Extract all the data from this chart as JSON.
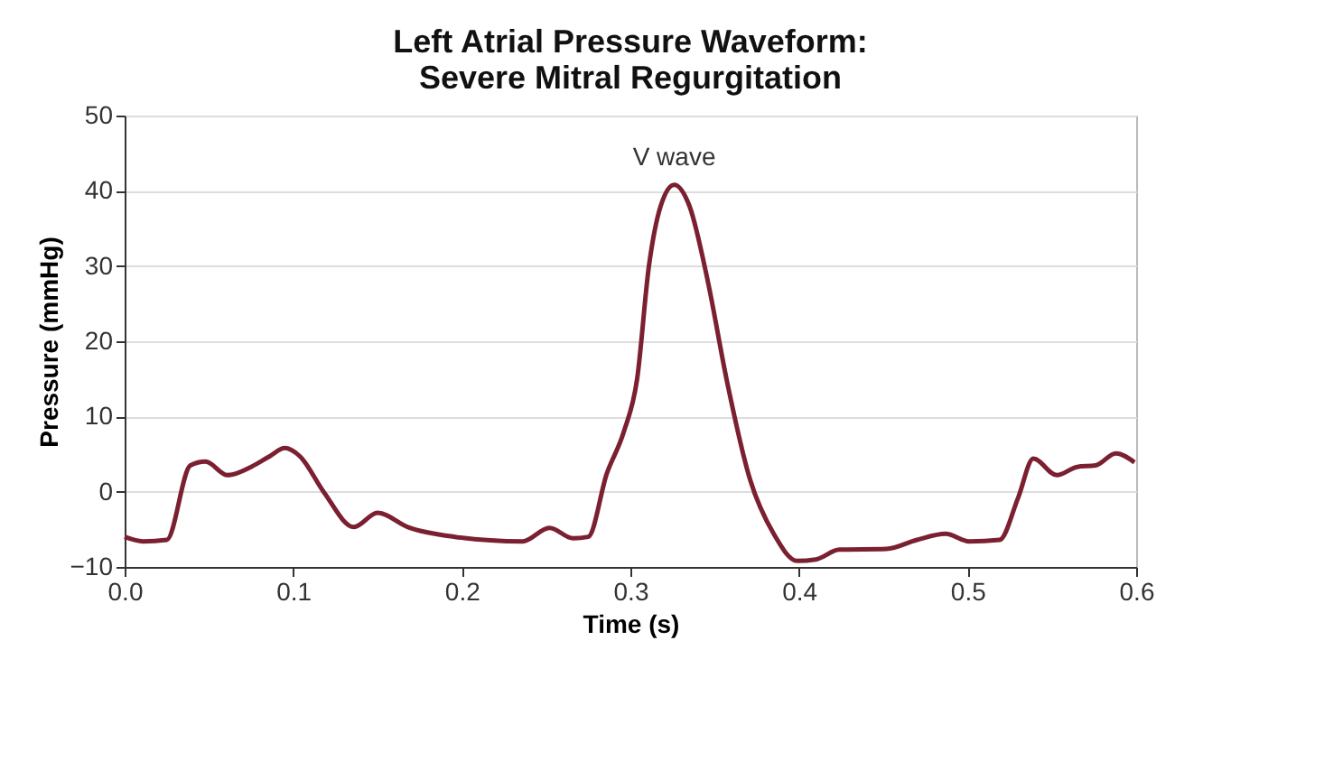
{
  "chart_data": {
    "type": "line",
    "title": [
      "Left Atrial Pressure Waveform:",
      "Severe Mitral Regurgitation"
    ],
    "xlabel": "Time (s)",
    "ylabel": "Pressure (mmHg)",
    "x": [
      0,
      0.011,
      0.025,
      0.039,
      0.048,
      0.061,
      0.075,
      0.086,
      0.095,
      0.104,
      0.118,
      0.136,
      0.15,
      0.168,
      0.196,
      0.236,
      0.252,
      0.266,
      0.275,
      0.286,
      0.296,
      0.304,
      0.311,
      0.318,
      0.326,
      0.335,
      0.346,
      0.357,
      0.371,
      0.385,
      0.399,
      0.41,
      0.424,
      0.452,
      0.47,
      0.487,
      0.501,
      0.519,
      0.53,
      0.539,
      0.553,
      0.565,
      0.576,
      0.588,
      0.599
    ],
    "series": [
      {
        "color": "#7b2030",
        "values": [
          -6.0,
          -6.6,
          -6.4,
          3.5,
          4.0,
          2.2,
          3.3,
          4.7,
          5.8,
          4.7,
          0,
          -4.7,
          -2.8,
          -4.7,
          -6.0,
          -6.6,
          -4.8,
          -6.2,
          -6.0,
          2.4,
          7.9,
          15,
          30,
          38,
          40.8,
          38,
          27.9,
          15,
          1.6,
          -5.6,
          -9.2,
          -9.0,
          -7.7,
          -7.6,
          -6.4,
          -5.6,
          -6.6,
          -6.4,
          -0.8,
          4.4,
          2.2,
          3.3,
          3.5,
          5.1,
          3.9
        ]
      }
    ],
    "xlim": [
      0,
      0.6
    ],
    "xticks": [
      {
        "value": 0,
        "label": "0.0"
      },
      0.1,
      0.2,
      0.3,
      0.4,
      0.5,
      0.6
    ],
    "ylim": [
      -10,
      50
    ],
    "yticks": [
      -10,
      0,
      10,
      20,
      30,
      40,
      50
    ],
    "grid": "y",
    "legend": false,
    "line_style": "solid",
    "annotations": [
      {
        "text": "V wave",
        "x": 0.326,
        "y": 40.8
      }
    ]
  }
}
